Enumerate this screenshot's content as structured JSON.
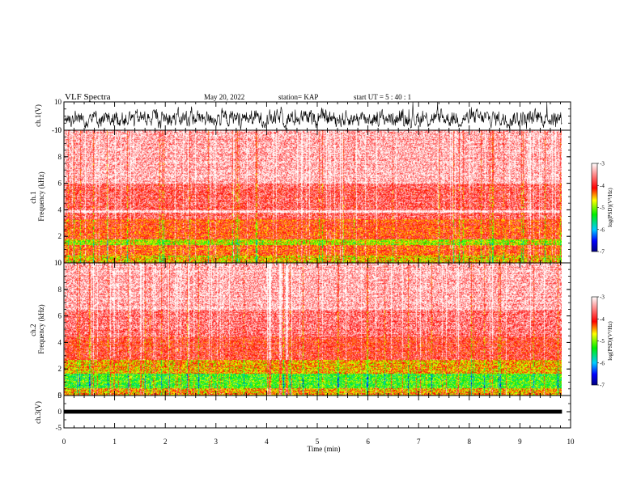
{
  "header": {
    "title": "VLF Spectra",
    "date": "May 20, 2022",
    "station": "station= KAP",
    "start": "start  UT  =   5  : 40 : 1"
  },
  "colors": {
    "low": "#0000aa",
    "mid": "#00cc33",
    "high": "#ff0000",
    "top": "#ffffff"
  },
  "chart_data": [
    {
      "type": "line",
      "name": "ch1-waveform",
      "ylabel": "ch.1(V)",
      "ylim": [
        -10,
        10
      ],
      "ytick_labels": [
        "10",
        "-10"
      ]
    },
    {
      "type": "heatmap",
      "name": "ch1-spectrogram",
      "ylabel": "ch.1\nFrequency (kHz)",
      "ylim": [
        0,
        10
      ],
      "ytick_labels": [
        "0",
        "2",
        "4",
        "6",
        "8",
        "10"
      ],
      "colorbar": {
        "label": "log(PSD)(V²/Hz)",
        "range": [
          -7,
          -3
        ],
        "tick_labels": [
          "-3",
          "-4",
          "-5",
          "-6",
          "-7"
        ]
      },
      "bands_khz": [
        {
          "from": 0.0,
          "to": 0.6,
          "level": -4.6
        },
        {
          "from": 0.6,
          "to": 1.4,
          "level": -4.2
        },
        {
          "from": 1.4,
          "to": 1.8,
          "level": -4.9
        },
        {
          "from": 1.8,
          "to": 3.3,
          "level": -4.1
        },
        {
          "from": 3.3,
          "to": 3.8,
          "level": -3.7
        },
        {
          "from": 3.8,
          "to": 4.0,
          "level": -3.0
        },
        {
          "from": 4.0,
          "to": 6.0,
          "level": -3.7
        },
        {
          "from": 6.0,
          "to": 10.0,
          "level": -3.3
        }
      ]
    },
    {
      "type": "heatmap",
      "name": "ch2-spectrogram",
      "ylabel": "ch.2\nFrequency (kHz)",
      "ylim": [
        0,
        10
      ],
      "ytick_labels": [
        "0",
        "2",
        "4",
        "6",
        "8",
        "10"
      ],
      "colorbar": {
        "label": "log(PSD)(V²/Hz)",
        "range": [
          -7,
          -3
        ],
        "tick_labels": [
          "-3",
          "-4",
          "-5",
          "-6",
          "-7"
        ]
      },
      "bands_khz": [
        {
          "from": 0.0,
          "to": 0.6,
          "level": -4.5
        },
        {
          "from": 0.6,
          "to": 1.7,
          "level": -5.2
        },
        {
          "from": 1.7,
          "to": 2.7,
          "level": -4.5
        },
        {
          "from": 2.7,
          "to": 4.5,
          "level": -3.9
        },
        {
          "from": 4.5,
          "to": 6.5,
          "level": -3.6
        },
        {
          "from": 6.5,
          "to": 10.0,
          "level": -3.3
        }
      ]
    },
    {
      "type": "line",
      "name": "ch3-waveform",
      "ylabel": "ch.3(V)",
      "ylim": [
        -5,
        5
      ],
      "ytick_labels": [
        "5",
        "0",
        "-5"
      ],
      "level_v": 0,
      "band_v": 0.6
    }
  ],
  "time_axis": {
    "label": "Time (min)",
    "range": [
      0,
      10
    ],
    "data_end": 9.83,
    "tick_labels": [
      "0",
      "1",
      "2",
      "3",
      "4",
      "5",
      "6",
      "7",
      "8",
      "9",
      "10"
    ]
  }
}
